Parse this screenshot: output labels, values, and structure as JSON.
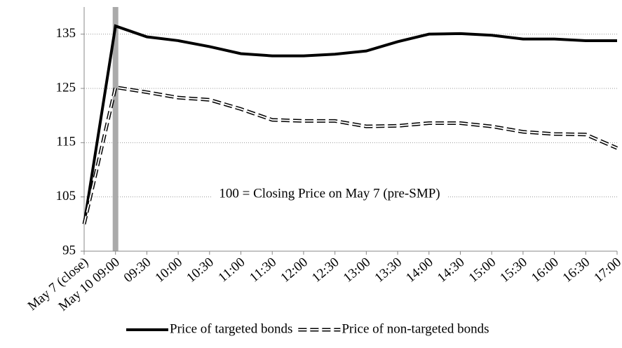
{
  "chart_data": {
    "type": "line",
    "annotation": "100 = Closing Price on May 7 (pre-SMP)",
    "categories": [
      "May 7  (close)",
      "May 10  09:00",
      "09:30",
      "10:00",
      "10:30",
      "11:00",
      "11:30",
      "12:00",
      "12:30",
      "13:00",
      "13:30",
      "14:00",
      "14:30",
      "15:00",
      "15:30",
      "16:00",
      "16:30",
      "17:00"
    ],
    "series": [
      {
        "name": "Price of targeted bonds",
        "color": "#000000",
        "style": "solid",
        "values": [
          100,
          136.5,
          134.5,
          133.8,
          132.7,
          131.4,
          131,
          131,
          131.3,
          131.9,
          133.6,
          135,
          135.1,
          134.8,
          134.1,
          134.1,
          133.8,
          133.8
        ]
      },
      {
        "name": "Price of non-targeted bonds",
        "color": "#000000",
        "style": "dashed",
        "values": [
          100,
          125.2,
          124.3,
          123.3,
          122.9,
          121.2,
          119.2,
          119,
          119,
          118,
          118.1,
          118.6,
          118.6,
          118,
          117,
          116.6,
          116.5,
          114
        ]
      }
    ],
    "ylim": [
      95,
      140
    ],
    "yticks": [
      95,
      105,
      115,
      125,
      135
    ],
    "grid": true,
    "highlight_category": 1,
    "legend": "bottom"
  }
}
